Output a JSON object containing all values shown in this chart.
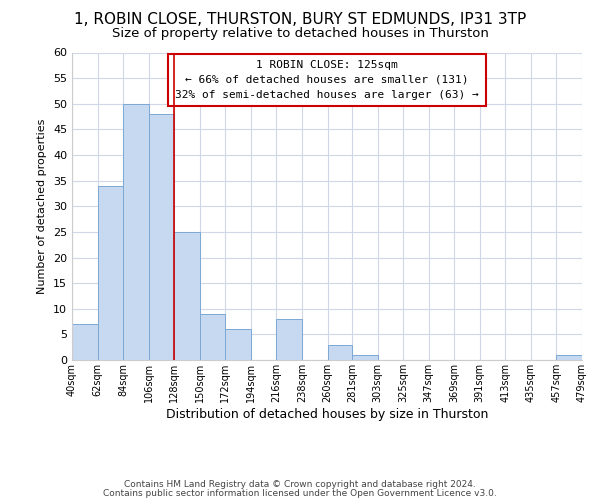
{
  "title": "1, ROBIN CLOSE, THURSTON, BURY ST EDMUNDS, IP31 3TP",
  "subtitle": "Size of property relative to detached houses in Thurston",
  "xlabel": "Distribution of detached houses by size in Thurston",
  "ylabel": "Number of detached properties",
  "bar_edges": [
    40,
    62,
    84,
    106,
    128,
    150,
    172,
    194,
    216,
    238,
    260,
    281,
    303,
    325,
    347,
    369,
    391,
    413,
    435,
    457,
    479
  ],
  "bar_heights": [
    7,
    34,
    50,
    48,
    25,
    9,
    6,
    0,
    8,
    0,
    3,
    1,
    0,
    0,
    0,
    0,
    0,
    0,
    0,
    1
  ],
  "bar_color": "#c6d9f0",
  "bar_edgecolor": "#7ca8d4",
  "vline_x": 128,
  "vline_color": "#cc0000",
  "annotation_title": "1 ROBIN CLOSE: 125sqm",
  "annotation_line1": "← 66% of detached houses are smaller (131)",
  "annotation_line2": "32% of semi-detached houses are larger (63) →",
  "annotation_box_color": "#ffffff",
  "annotation_box_edgecolor": "#cc0000",
  "ylim": [
    0,
    60
  ],
  "yticks": [
    0,
    5,
    10,
    15,
    20,
    25,
    30,
    35,
    40,
    45,
    50,
    55,
    60
  ],
  "xtick_labels": [
    "40sqm",
    "62sqm",
    "84sqm",
    "106sqm",
    "128sqm",
    "150sqm",
    "172sqm",
    "194sqm",
    "216sqm",
    "238sqm",
    "260sqm",
    "281sqm",
    "303sqm",
    "325sqm",
    "347sqm",
    "369sqm",
    "391sqm",
    "413sqm",
    "435sqm",
    "457sqm",
    "479sqm"
  ],
  "footnote1": "Contains HM Land Registry data © Crown copyright and database right 2024.",
  "footnote2": "Contains public sector information licensed under the Open Government Licence v3.0.",
  "background_color": "#ffffff",
  "grid_color": "#d0d8e8",
  "title_fontsize": 11,
  "subtitle_fontsize": 9.5,
  "ylabel_fontsize": 8,
  "xlabel_fontsize": 9
}
